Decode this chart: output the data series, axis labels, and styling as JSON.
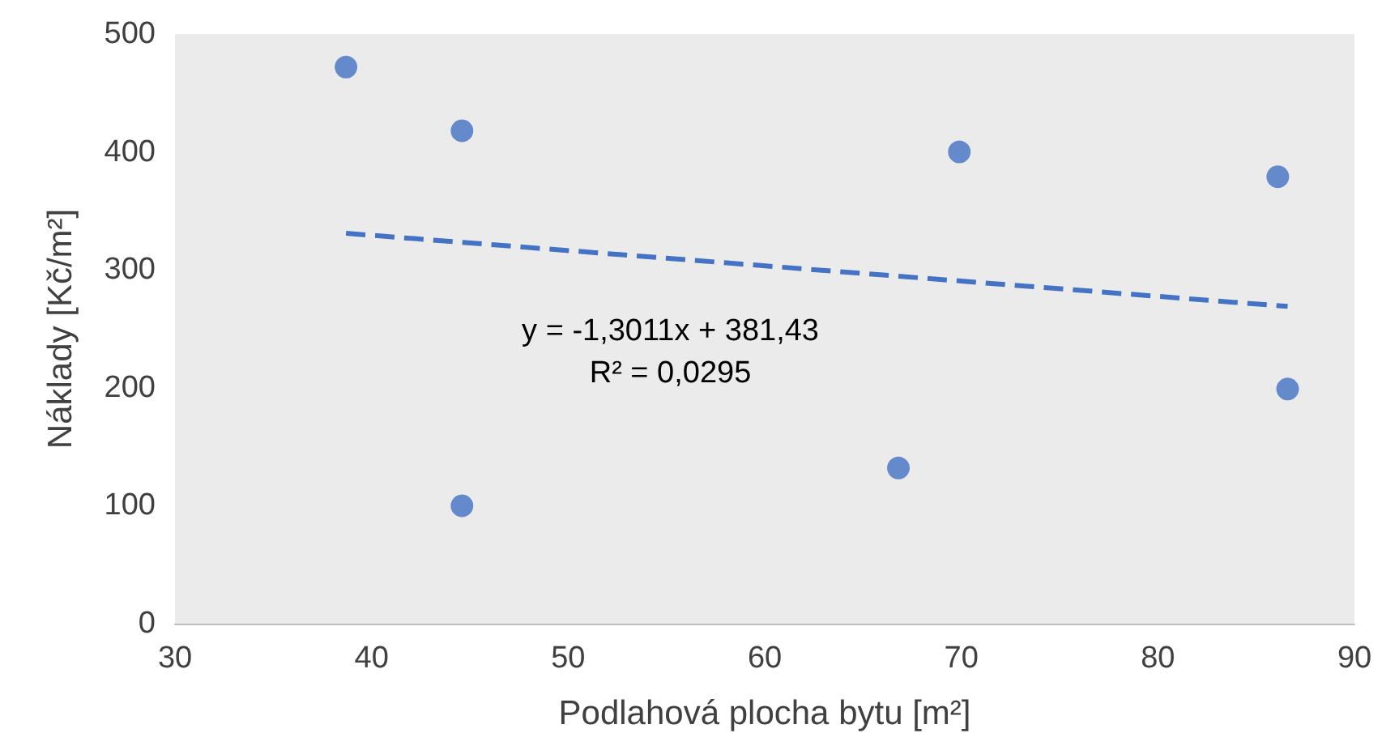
{
  "chart_data": {
    "type": "scatter",
    "xlabel": "Podlahová plocha bytu [m²]",
    "ylabel": "Náklady [Kč/m²]",
    "series": [
      {
        "color": "#4472c4",
        "marker": "circle",
        "x": [
          38.7,
          44.6,
          44.6,
          66.8,
          69.9,
          86.1,
          86.6
        ],
        "values": [
          472,
          418,
          100,
          132,
          400,
          379,
          199
        ]
      },
      {
        "type": "line",
        "color": "#4472c4",
        "line_style": "dashed",
        "marker": "none",
        "x": [
          38.7,
          86.6
        ],
        "values": [
          331,
          269
        ]
      }
    ],
    "annotations": [
      "y = -1,3011x + 381,43",
      "R² = 0,0295"
    ],
    "xlim": [
      30,
      90
    ],
    "xticks": [
      30,
      40,
      50,
      60,
      70,
      80,
      90
    ],
    "ylim": [
      0,
      500
    ],
    "yticks": [
      0,
      100,
      200,
      300,
      400,
      500
    ],
    "grid": false
  }
}
